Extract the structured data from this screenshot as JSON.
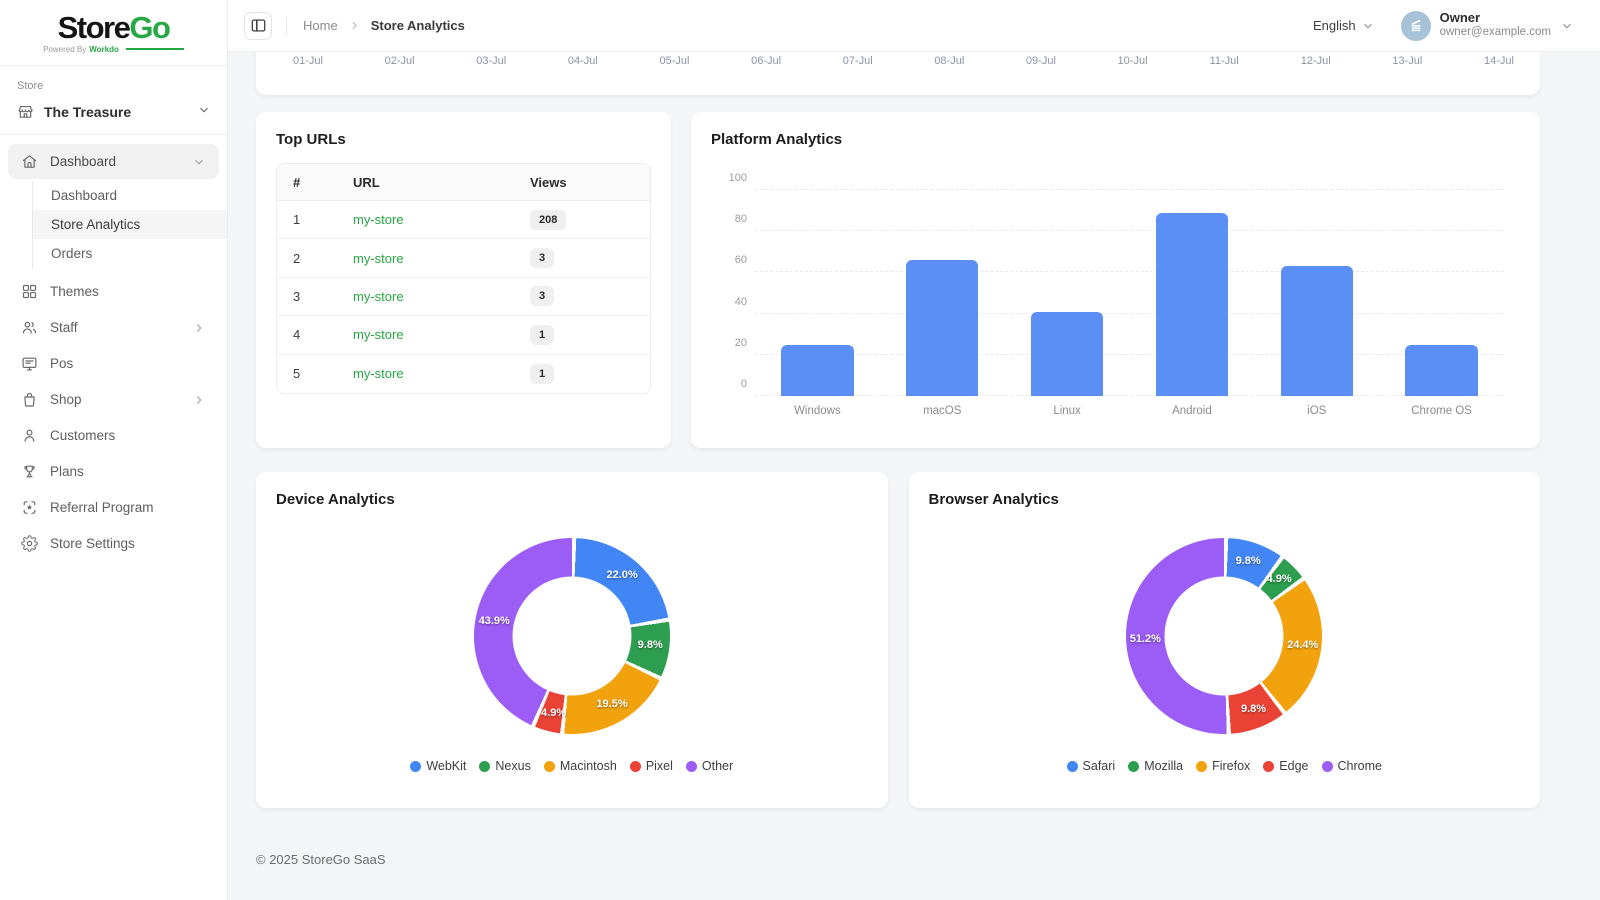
{
  "app": {
    "logo_primary": "Store",
    "logo_secondary": "Go",
    "tagline_prefix": "Powered By",
    "tagline_brand": "Workdo",
    "footer_text": "© 2025 StoreGo SaaS",
    "accent_green": "#28a745"
  },
  "header": {
    "breadcrumb": {
      "home": "Home",
      "current": "Store Analytics"
    },
    "language": "English",
    "user": {
      "name": "Owner",
      "email": "owner@example.com"
    }
  },
  "sidebar": {
    "section_label": "Store",
    "store_name": "The Treasure",
    "items": [
      {
        "label": "Dashboard",
        "icon": "home-icon",
        "expanded": true,
        "active": true,
        "children": [
          {
            "label": "Dashboard",
            "active": false
          },
          {
            "label": "Store Analytics",
            "active": true
          },
          {
            "label": "Orders",
            "active": false
          }
        ]
      },
      {
        "label": "Themes",
        "icon": "grid-icon"
      },
      {
        "label": "Staff",
        "icon": "users-icon",
        "chevron": "right"
      },
      {
        "label": "Pos",
        "icon": "monitor-icon"
      },
      {
        "label": "Shop",
        "icon": "bag-icon",
        "chevron": "right"
      },
      {
        "label": "Customers",
        "icon": "user-icon"
      },
      {
        "label": "Plans",
        "icon": "trophy-icon"
      },
      {
        "label": "Referral Program",
        "icon": "referral-icon"
      },
      {
        "label": "Store Settings",
        "icon": "gear-icon"
      }
    ]
  },
  "top_urls": {
    "title": "Top URLs",
    "columns": [
      "#",
      "URL",
      "Views"
    ],
    "rows": [
      {
        "rank": "1",
        "url": "my-store",
        "views": "208"
      },
      {
        "rank": "2",
        "url": "my-store",
        "views": "3"
      },
      {
        "rank": "3",
        "url": "my-store",
        "views": "3"
      },
      {
        "rank": "4",
        "url": "my-store",
        "views": "1"
      },
      {
        "rank": "5",
        "url": "my-store",
        "views": "1"
      }
    ]
  },
  "chart_data": [
    {
      "id": "timeline",
      "type": "line",
      "note": "chart scrolled mostly out of view; only x-axis labels visible",
      "x": [
        "01-Jul",
        "02-Jul",
        "03-Jul",
        "04-Jul",
        "05-Jul",
        "06-Jul",
        "07-Jul",
        "08-Jul",
        "09-Jul",
        "10-Jul",
        "11-Jul",
        "12-Jul",
        "13-Jul",
        "14-Jul"
      ]
    },
    {
      "id": "platform",
      "type": "bar",
      "title": "Platform Analytics",
      "categories": [
        "Windows",
        "macOS",
        "Linux",
        "Android",
        "iOS",
        "Chrome OS"
      ],
      "values": [
        25,
        66,
        41,
        89,
        63,
        25
      ],
      "ylim": [
        0,
        100
      ],
      "yticks": [
        0,
        20,
        40,
        60,
        80,
        100
      ],
      "bar_color": "#5b8ff5",
      "grid": "dashed horizontal"
    },
    {
      "id": "device",
      "type": "pie",
      "title": "Device Analytics",
      "labels": [
        "WebKit",
        "Nexus",
        "Macintosh",
        "Pixel",
        "Other"
      ],
      "values": [
        22.0,
        9.8,
        19.5,
        4.9,
        43.9
      ],
      "colors": [
        "#4286f5",
        "#2d9e4f",
        "#f2a20d",
        "#ea4335",
        "#9c5cf6"
      ],
      "legend_position": "bottom"
    },
    {
      "id": "browser",
      "type": "pie",
      "title": "Browser Analytics",
      "labels": [
        "Safari",
        "Mozilla",
        "Firefox",
        "Edge",
        "Chrome"
      ],
      "values": [
        9.8,
        4.9,
        24.4,
        9.8,
        51.2
      ],
      "colors": [
        "#4286f5",
        "#2d9e4f",
        "#f2a20d",
        "#ea4335",
        "#9c5cf6"
      ],
      "legend_position": "bottom"
    }
  ]
}
